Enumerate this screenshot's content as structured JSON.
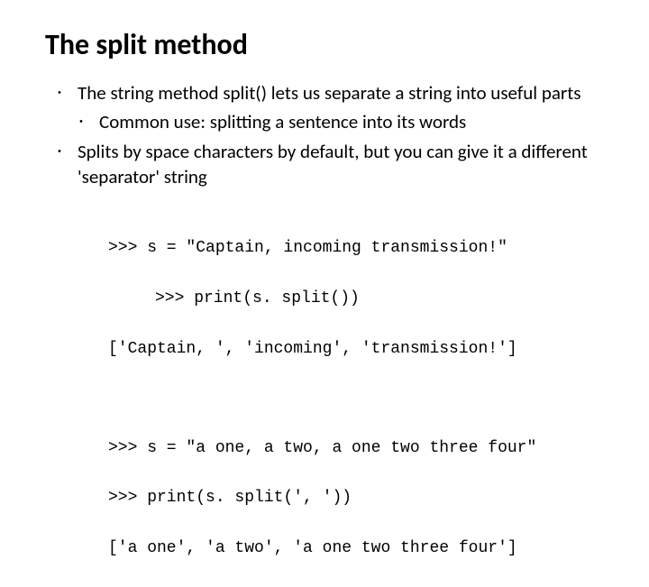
{
  "title": "The split method",
  "bullets": {
    "b1": "The string method split() lets us separate a string into useful parts",
    "b2": "Common use: splitting a sentence into its words",
    "b3": "Splits by space characters by default, but you can give it a different 'separator' string"
  },
  "code1": {
    "l1": ">>> s = \"Captain, incoming transmission!\"",
    "l2": ">>> print(s. split())",
    "l3": "['Captain, ', 'incoming', 'transmission!']"
  },
  "code2": {
    "l1": ">>> s = \"a one, a two, a one two three four\"",
    "l2": ">>> print(s. split(', '))",
    "l3": "['a one', 'a two', 'a one two three four']"
  },
  "colors": {
    "text": "#000000",
    "background": "#ffffff"
  },
  "fonts": {
    "title_size": 32,
    "body_size": 21,
    "code_size": 18,
    "code_family": "Courier New"
  }
}
